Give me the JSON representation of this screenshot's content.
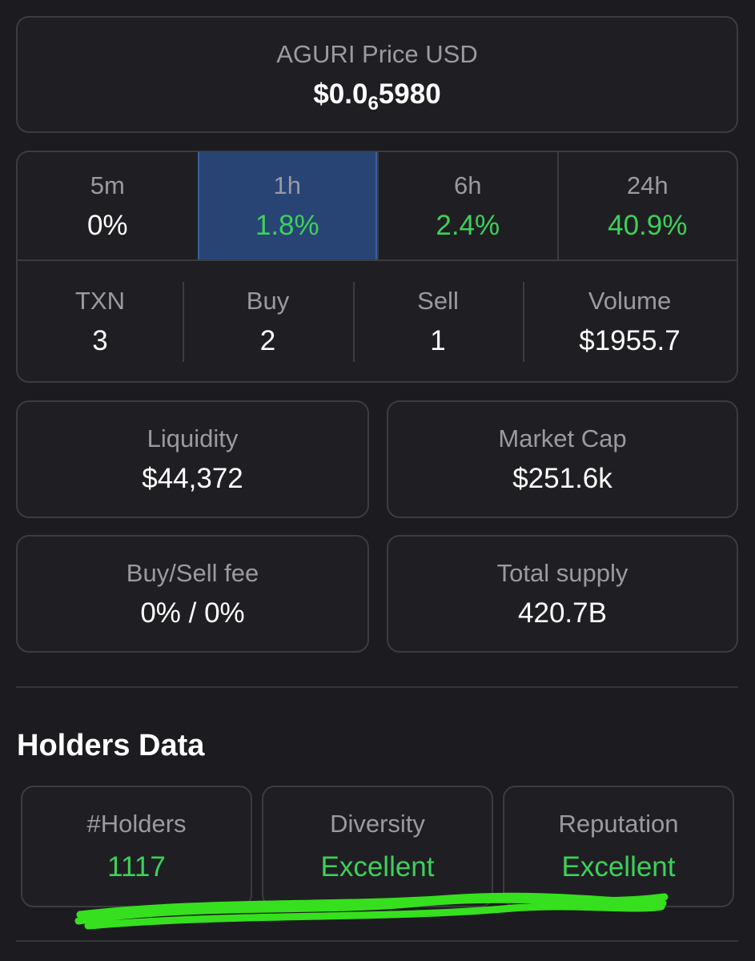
{
  "price": {
    "label": "AGURI Price USD",
    "prefix": "$0.0",
    "subscript": "6",
    "digits": "5980"
  },
  "timeframes": [
    {
      "label": "5m",
      "change": "0%",
      "positive": false,
      "selected": false
    },
    {
      "label": "1h",
      "change": "1.8%",
      "positive": true,
      "selected": true
    },
    {
      "label": "6h",
      "change": "2.4%",
      "positive": true,
      "selected": false
    },
    {
      "label": "24h",
      "change": "40.9%",
      "positive": true,
      "selected": false
    }
  ],
  "transactions": [
    {
      "label": "TXN",
      "value": "3"
    },
    {
      "label": "Buy",
      "value": "2"
    },
    {
      "label": "Sell",
      "value": "1"
    },
    {
      "label": "Volume",
      "value": "$1955.7"
    }
  ],
  "stats": [
    {
      "label": "Liquidity",
      "value": "$44,372"
    },
    {
      "label": "Market Cap",
      "value": "$251.6k"
    },
    {
      "label": "Buy/Sell fee",
      "value": "0% / 0%"
    },
    {
      "label": "Total supply",
      "value": "420.7B"
    }
  ],
  "holders": {
    "title": "Holders Data",
    "items": [
      {
        "label": "#Holders",
        "value": "1117"
      },
      {
        "label": "Diversity",
        "value": "Excellent"
      },
      {
        "label": "Reputation",
        "value": "Excellent"
      }
    ]
  }
}
